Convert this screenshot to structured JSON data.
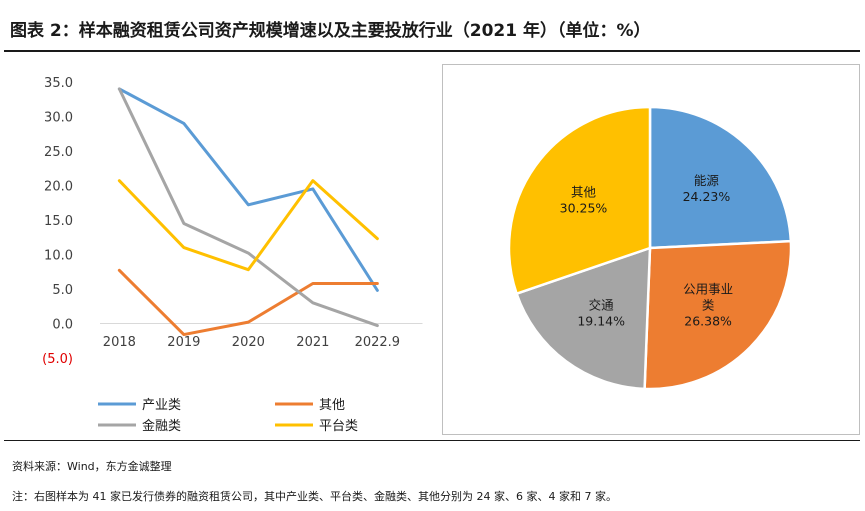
{
  "header": {
    "title": "图表 2：样本融资租赁公司资产规模增速以及主要投放行业（2021 年）（单位：%）"
  },
  "chart_data": [
    {
      "type": "line",
      "title": "",
      "xlabel": "",
      "ylabel": "",
      "categories": [
        "2018",
        "2019",
        "2020",
        "2021",
        "2022.9"
      ],
      "y_ticks": [
        "35.0",
        "30.0",
        "25.0",
        "20.0",
        "15.0",
        "10.0",
        "5.0",
        "0.0",
        "(5.0)"
      ],
      "ylim": [
        -5,
        35
      ],
      "grid": false,
      "legend_position": "bottom",
      "series": [
        {
          "name": "产业类",
          "color": "#5b9bd5",
          "values": [
            34.0,
            29.0,
            17.2,
            19.5,
            4.8
          ]
        },
        {
          "name": "其他",
          "color": "#ed7d31",
          "values": [
            7.7,
            -1.6,
            0.2,
            5.8,
            5.8
          ]
        },
        {
          "name": "金融类",
          "color": "#a5a5a5",
          "values": [
            34.0,
            14.5,
            10.2,
            3.0,
            -0.3
          ]
        },
        {
          "name": "平台类",
          "color": "#ffc000",
          "values": [
            20.7,
            11.0,
            7.8,
            20.7,
            12.3
          ]
        }
      ]
    },
    {
      "type": "pie",
      "title": "",
      "legend_position": "none",
      "slices": [
        {
          "label": "能源",
          "value": 24.23,
          "value_label": "24.23%",
          "color": "#5b9bd5"
        },
        {
          "label": "公用事业类",
          "label_lines": [
            "公用事业",
            "类"
          ],
          "value": 26.38,
          "value_label": "26.38%",
          "color": "#ed7d31"
        },
        {
          "label": "交通",
          "value": 19.14,
          "value_label": "19.14%",
          "color": "#a5a5a5"
        },
        {
          "label": "其他",
          "value": 30.25,
          "value_label": "30.25%",
          "color": "#ffc000"
        }
      ]
    }
  ],
  "footer": {
    "source": "资料来源：Wind，东方金诚整理",
    "note": "注：右图样本为 41 家已发行债券的融资租赁公司，其中产业类、平台类、金融类、其他分别为 24 家、6 家、4 家和 7 家。"
  }
}
